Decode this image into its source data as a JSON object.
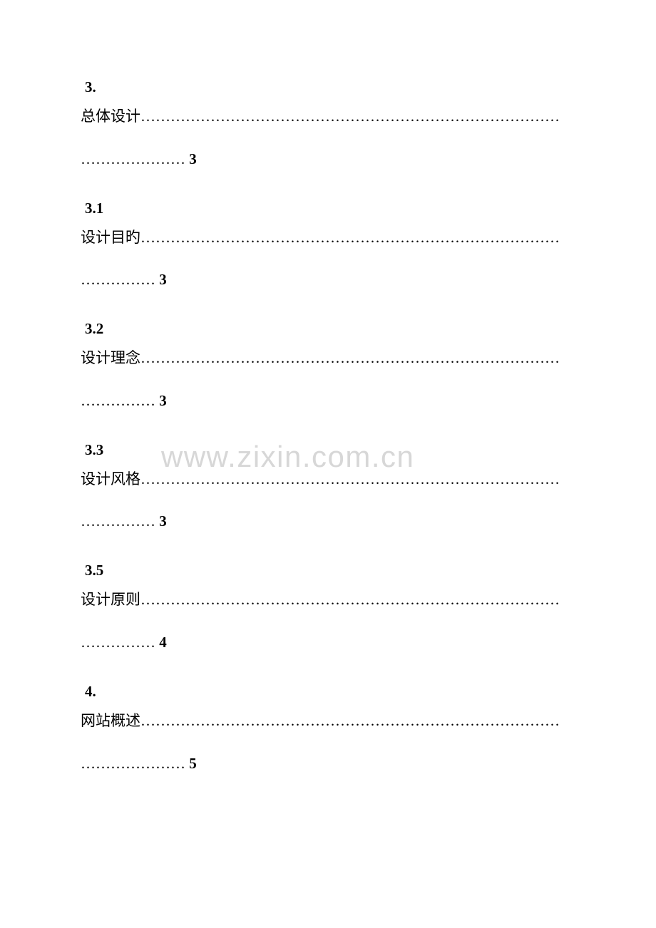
{
  "watermark": "www.zixin.com.cn",
  "toc": [
    {
      "number": "3.",
      "title": "总体设计",
      "leader1": "…………………………………………………………………………",
      "leader2": "…………………",
      "page": "3"
    },
    {
      "number": "3.1",
      "title": "设计目旳",
      "leader1": "…………………………………………………………………………",
      "leader2": "……………",
      "page": "3"
    },
    {
      "number": "3.2",
      "title": "设计理念",
      "leader1": "…………………………………………………………………………",
      "leader2": "……………",
      "page": "3"
    },
    {
      "number": "3.3",
      "title": "设计风格",
      "leader1": "…………………………………………………………………………",
      "leader2": "……………",
      "page": "3"
    },
    {
      "number": "3.5",
      "title": "设计原则",
      "leader1": "…………………………………………………………………………",
      "leader2": "……………",
      "page": "4"
    },
    {
      "number": "4.",
      "title": "网站概述",
      "leader1": "…………………………………………………………………………",
      "leader2": "…………………",
      "page": "5"
    }
  ],
  "colors": {
    "background": "#ffffff",
    "text": "#000000",
    "watermark": "#d7d7d7"
  }
}
